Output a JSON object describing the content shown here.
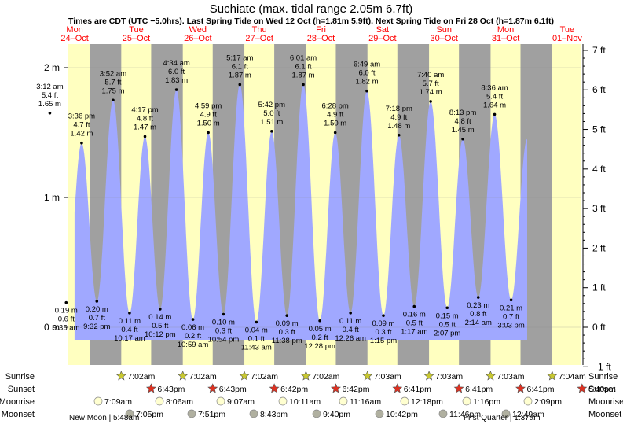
{
  "title": "Suchiate (max. tidal range 2.05m 6.7ft)",
  "subtitle": "Times are CDT (UTC −5.0hrs). Last Spring Tide on Wed 12 Oct (h=1.81m 5.9ft). Next Spring Tide on Fri 28 Oct (h=1.87m 6.1ft)",
  "colors": {
    "night": "#a0a0a0",
    "day": "#ffffc0",
    "water": "#a0a8ff",
    "date": "#ff0000",
    "sun": "#c8c830",
    "sunset": "#e03020",
    "moonrise": "#ffffd0",
    "moonset": "#b0b0a0"
  },
  "chart_data": {
    "type": "area",
    "days": [
      {
        "dow": "Mon",
        "date": "24–Oct"
      },
      {
        "dow": "Tue",
        "date": "25–Oct"
      },
      {
        "dow": "Wed",
        "date": "26–Oct"
      },
      {
        "dow": "Thu",
        "date": "27–Oct"
      },
      {
        "dow": "Fri",
        "date": "28–Oct"
      },
      {
        "dow": "Sat",
        "date": "29–Oct"
      },
      {
        "dow": "Sun",
        "date": "30–Oct"
      },
      {
        "dow": "Mon",
        "date": "31–Oct"
      },
      {
        "dow": "Tue",
        "date": "01–Nov"
      }
    ],
    "left_axis": {
      "unit": "m",
      "range": [
        -0.25,
        2.2
      ],
      "ticks": [
        "0 m",
        "1 m",
        "2 m"
      ]
    },
    "right_axis": {
      "unit": "ft",
      "ticks": [
        "−1 ft",
        "0 ft",
        "1 ft",
        "2 ft",
        "3 ft",
        "4 ft",
        "5 ft",
        "6 ft",
        "7 ft"
      ]
    },
    "tides": [
      {
        "time": "3:12 am",
        "ft": "5.4 ft",
        "m": "1.65 m",
        "h": 1.65,
        "type": "high"
      },
      {
        "time": "9:35 am",
        "ft": "0.6 ft",
        "m": "0.19 m",
        "h": 0.19,
        "type": "low"
      },
      {
        "time": "3:36 pm",
        "ft": "4.7 ft",
        "m": "1.42 m",
        "h": 1.42,
        "type": "high"
      },
      {
        "time": "9:32 pm",
        "ft": "0.7 ft",
        "m": "0.20 m",
        "h": 0.2,
        "type": "low"
      },
      {
        "time": "3:52 am",
        "ft": "5.7 ft",
        "m": "1.75 m",
        "h": 1.75,
        "type": "high"
      },
      {
        "time": "10:17 am",
        "ft": "0.4 ft",
        "m": "0.11 m",
        "h": 0.11,
        "type": "low"
      },
      {
        "time": "4:17 pm",
        "ft": "4.8 ft",
        "m": "1.47 m",
        "h": 1.47,
        "type": "high"
      },
      {
        "time": "10:12 pm",
        "ft": "0.5 ft",
        "m": "0.14 m",
        "h": 0.14,
        "type": "low"
      },
      {
        "time": "4:34 am",
        "ft": "6.0 ft",
        "m": "1.83 m",
        "h": 1.83,
        "type": "high"
      },
      {
        "time": "10:59 am",
        "ft": "0.2 ft",
        "m": "0.06 m",
        "h": 0.06,
        "type": "low"
      },
      {
        "time": "4:59 pm",
        "ft": "4.9 ft",
        "m": "1.50 m",
        "h": 1.5,
        "type": "high"
      },
      {
        "time": "10:54 pm",
        "ft": "0.3 ft",
        "m": "0.10 m",
        "h": 0.1,
        "type": "low"
      },
      {
        "time": "5:17 am",
        "ft": "6.1 ft",
        "m": "1.87 m",
        "h": 1.87,
        "type": "high"
      },
      {
        "time": "11:43 am",
        "ft": "0.1 ft",
        "m": "0.04 m",
        "h": 0.04,
        "type": "low"
      },
      {
        "time": "5:42 pm",
        "ft": "5.0 ft",
        "m": "1.51 m",
        "h": 1.51,
        "type": "high"
      },
      {
        "time": "11:38 pm",
        "ft": "0.3 ft",
        "m": "0.09 m",
        "h": 0.09,
        "type": "low"
      },
      {
        "time": "6:01 am",
        "ft": "6.1 ft",
        "m": "1.87 m",
        "h": 1.87,
        "type": "high"
      },
      {
        "time": "12:28 pm",
        "ft": "0.2 ft",
        "m": "0.05 m",
        "h": 0.05,
        "type": "low"
      },
      {
        "time": "6:28 pm",
        "ft": "4.9 ft",
        "m": "1.50 m",
        "h": 1.5,
        "type": "high"
      },
      {
        "time": "12:26 am",
        "ft": "0.4 ft",
        "m": "0.11 m",
        "h": 0.11,
        "type": "low"
      },
      {
        "time": "6:49 am",
        "ft": "6.0 ft",
        "m": "1.82 m",
        "h": 1.82,
        "type": "high"
      },
      {
        "time": "1:15 pm",
        "ft": "0.3 ft",
        "m": "0.09 m",
        "h": 0.09,
        "type": "low"
      },
      {
        "time": "7:18 pm",
        "ft": "4.9 ft",
        "m": "1.48 m",
        "h": 1.48,
        "type": "high"
      },
      {
        "time": "1:17 am",
        "ft": "0.5 ft",
        "m": "0.16 m",
        "h": 0.16,
        "type": "low"
      },
      {
        "time": "7:40 am",
        "ft": "5.7 ft",
        "m": "1.74 m",
        "h": 1.74,
        "type": "high"
      },
      {
        "time": "2:07 pm",
        "ft": "0.5 ft",
        "m": "0.15 m",
        "h": 0.15,
        "type": "low"
      },
      {
        "time": "8:13 pm",
        "ft": "4.8 ft",
        "m": "1.45 m",
        "h": 1.45,
        "type": "high"
      },
      {
        "time": "2:14 am",
        "ft": "0.8 ft",
        "m": "0.23 m",
        "h": 0.23,
        "type": "low"
      },
      {
        "time": "8:36 am",
        "ft": "5.4 ft",
        "m": "1.64 m",
        "h": 1.64,
        "type": "high"
      },
      {
        "time": "3:03 pm",
        "ft": "0.7 ft",
        "m": "0.21 m",
        "h": 0.21,
        "type": "low"
      }
    ],
    "sun_moon": {
      "row_labels": [
        "Sunrise",
        "Sunset",
        "Moonrise",
        "Moonset"
      ],
      "sunrise": [
        "7:02am",
        "7:02am",
        "7:02am",
        "7:02am",
        "7:03am",
        "7:03am",
        "7:03am",
        "7:04am"
      ],
      "sunset": [
        "6:43pm",
        "6:43pm",
        "6:42pm",
        "6:42pm",
        "6:41pm",
        "6:41pm",
        "6:41pm",
        "6:40pm"
      ],
      "moonrise": [
        "7:09am",
        "8:06am",
        "9:07am",
        "10:11am",
        "11:16am",
        "12:18pm",
        "1:16pm",
        "2:09pm"
      ],
      "moonset": [
        "7:05pm",
        "7:51pm",
        "8:43pm",
        "9:40pm",
        "10:42pm",
        "11:46pm",
        "12:49am"
      ],
      "phases": [
        "New Moon | 5:48am",
        "First Quarter | 1:37am"
      ]
    }
  }
}
